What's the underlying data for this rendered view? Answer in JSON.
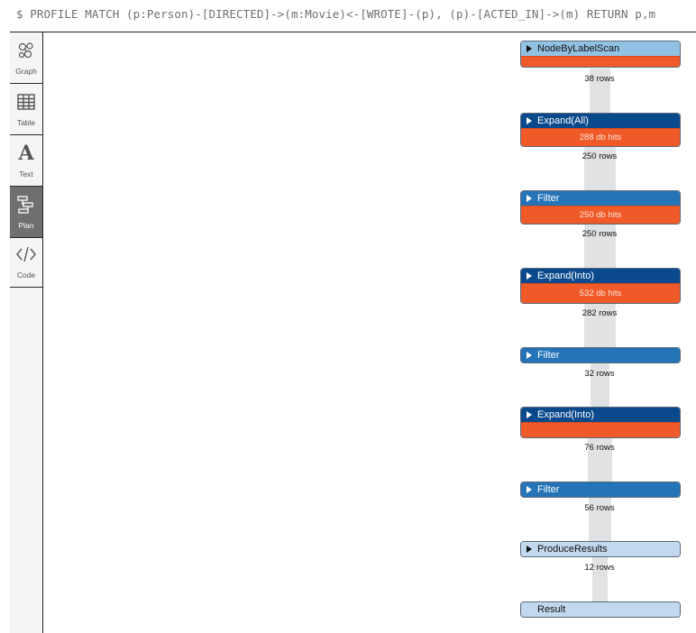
{
  "query": "$ PROFILE  MATCH (p:Person)-[DIRECTED]->(m:Movie)<-[WROTE]-(p), (p)-[ACTED_IN]->(m) RETURN p,m",
  "sidebar": {
    "items": [
      {
        "label": "Graph",
        "icon": "graph-icon",
        "active": false
      },
      {
        "label": "Table",
        "icon": "table-icon",
        "active": false
      },
      {
        "label": "Text",
        "icon": "text-icon",
        "active": false
      },
      {
        "label": "Plan",
        "icon": "plan-icon",
        "active": true
      },
      {
        "label": "Code",
        "icon": "code-icon",
        "active": false
      }
    ]
  },
  "plan": {
    "operators": [
      {
        "name": "NodeByLabelScan",
        "hits": "",
        "rows": "38 rows"
      },
      {
        "name": "Expand(All)",
        "hits": "288 db hits",
        "rows": "250 rows"
      },
      {
        "name": "Filter",
        "hits": "250 db hits",
        "rows": "250 rows"
      },
      {
        "name": "Expand(Into)",
        "hits": "532 db hits",
        "rows": "282 rows"
      },
      {
        "name": "Filter",
        "hits": "",
        "rows": "32 rows"
      },
      {
        "name": "Expand(Into)",
        "hits": "",
        "rows": "76 rows"
      },
      {
        "name": "Filter",
        "hits": "",
        "rows": "56 rows"
      },
      {
        "name": "ProduceResults",
        "hits": "",
        "rows": "12 rows"
      },
      {
        "name": "Result",
        "hits": "",
        "rows": ""
      }
    ]
  },
  "colors": {
    "hits_bar": "#f05a28",
    "header_navy": "#0a4a8c",
    "header_medium": "#2574b8",
    "header_light": "#c2d8ef",
    "header_sky": "#92c2e3",
    "connector": "#e1e2e4"
  }
}
